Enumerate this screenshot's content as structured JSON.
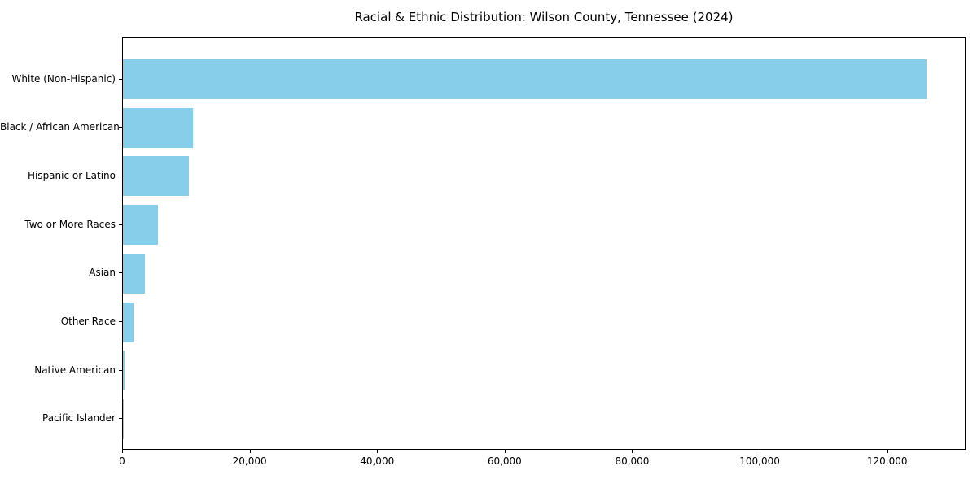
{
  "chart_data": {
    "type": "bar",
    "orientation": "horizontal",
    "title": "Racial & Ethnic Distribution: Wilson County, Tennessee (2024)",
    "categories": [
      "White (Non-Hispanic)",
      "Black / African American",
      "Hispanic or Latino",
      "Two or More Races",
      "Asian",
      "Other Race",
      "Native American",
      "Pacific Islander"
    ],
    "values": [
      126000,
      11000,
      10300,
      5500,
      3400,
      1700,
      200,
      100
    ],
    "xlabel": "",
    "ylabel": "",
    "xlim": [
      0,
      132300
    ],
    "xticks": [
      0,
      20000,
      40000,
      60000,
      80000,
      100000,
      120000
    ],
    "xtick_labels": [
      "0",
      "20,000",
      "40,000",
      "60,000",
      "80,000",
      "100,000",
      "120,000"
    ],
    "grid": false,
    "legend_position": "none",
    "sort_order": "descending-top-to-bottom",
    "bar_color": "#87CEEB",
    "axis_color": "#000000",
    "background_color": "#FFFFFF"
  }
}
